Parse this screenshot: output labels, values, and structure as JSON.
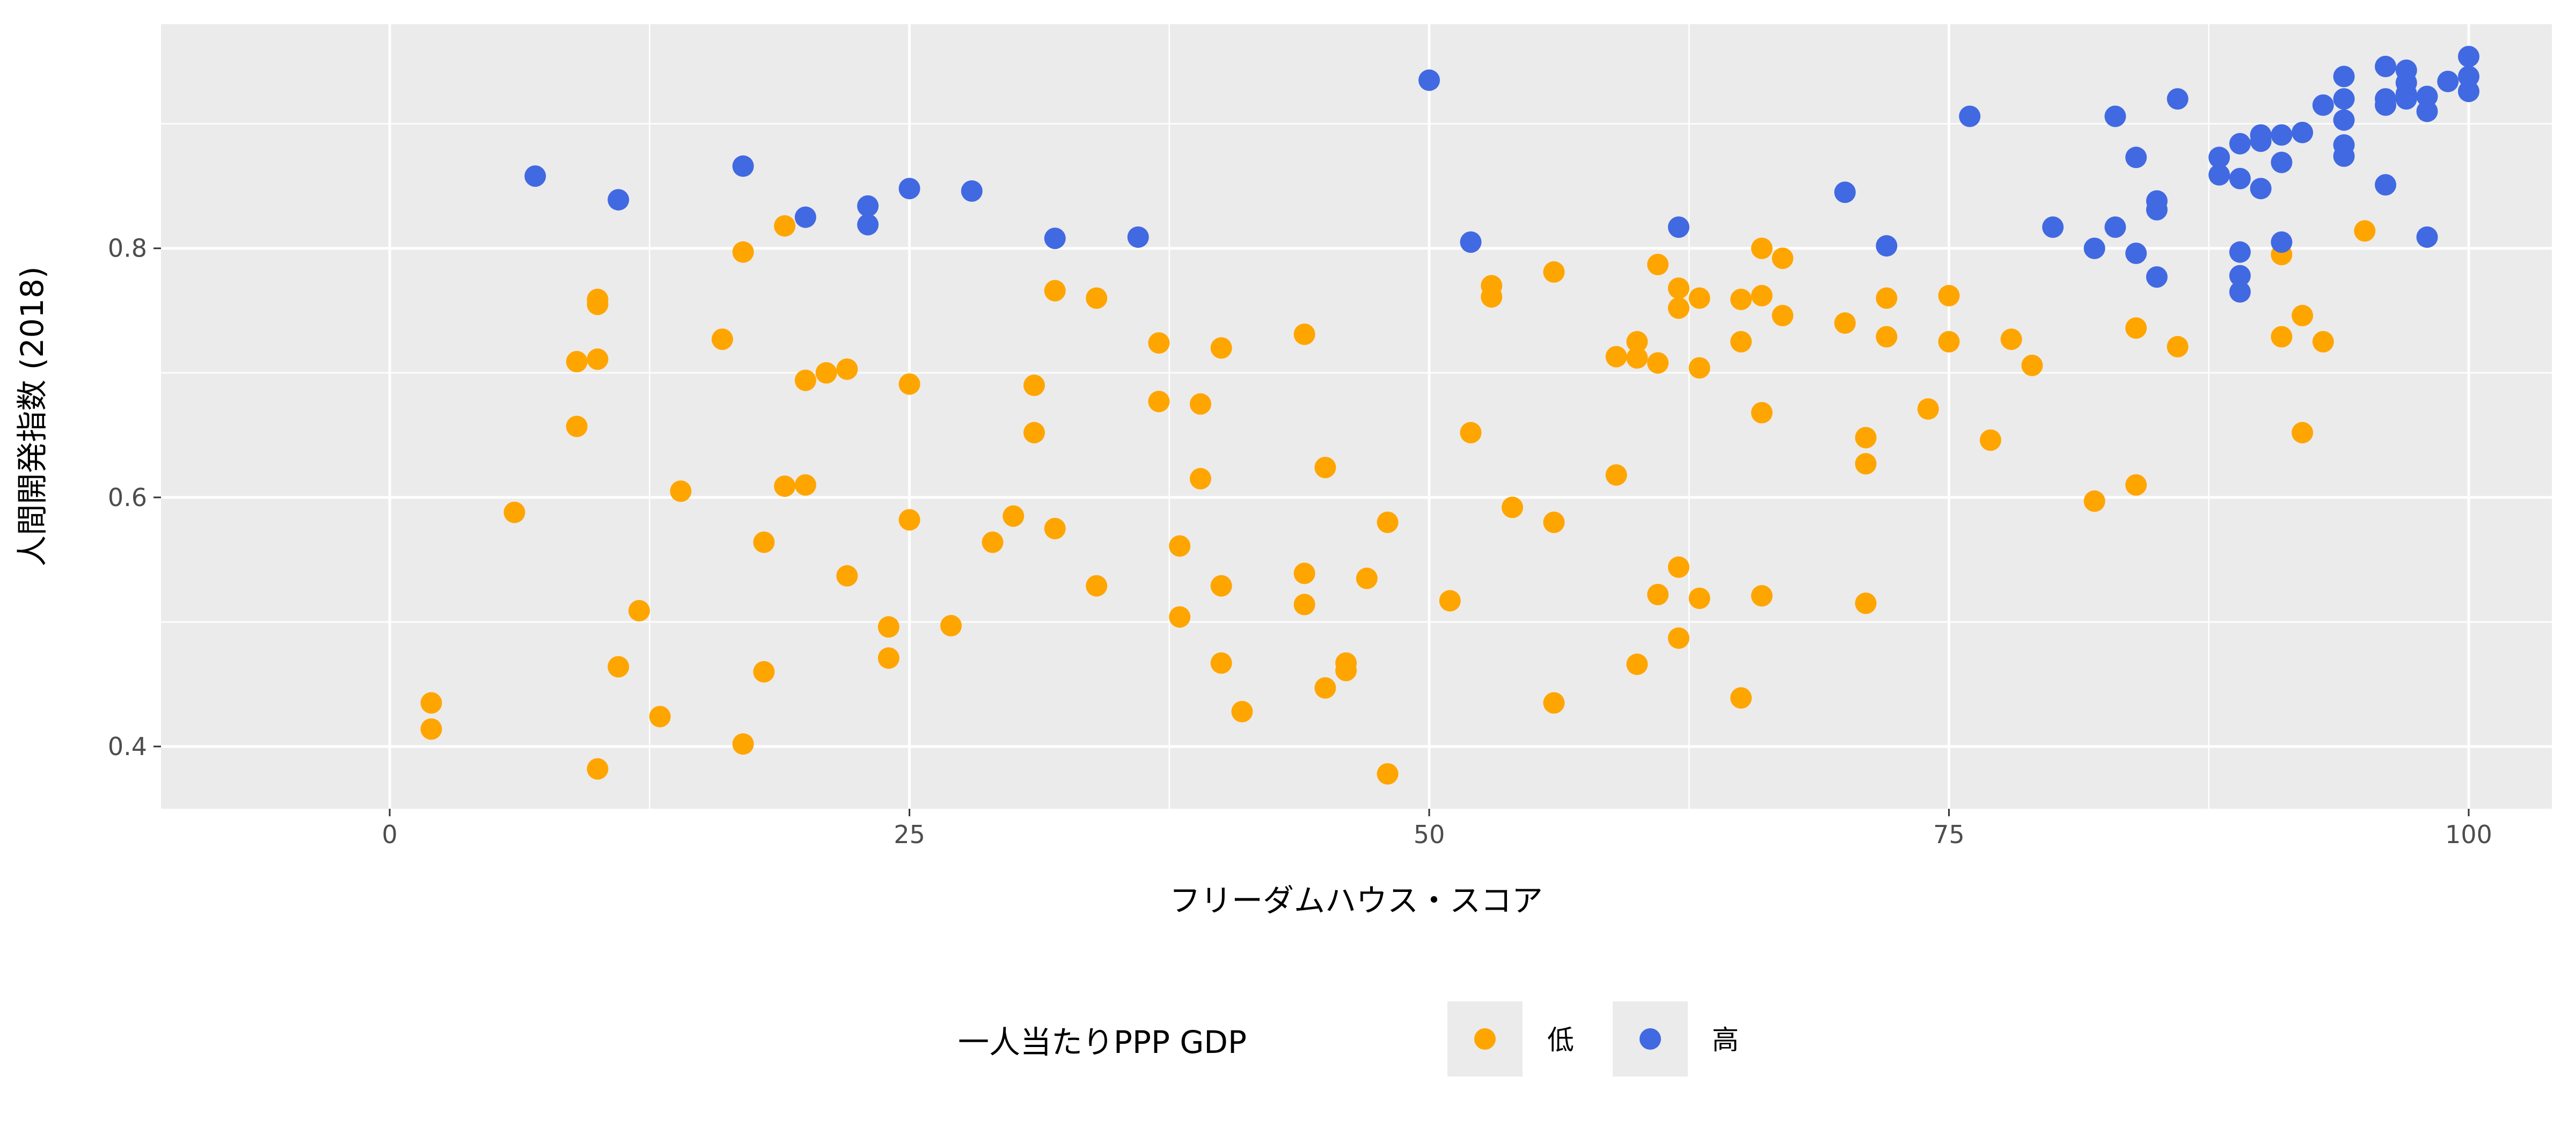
{
  "chart_data": {
    "type": "scatter",
    "xlabel": "フリーダムハウス・スコア",
    "ylabel": "人間開発指数 (2018)",
    "xlim": [
      -11,
      104
    ],
    "ylim": [
      0.35,
      0.98
    ],
    "x_ticks": [
      0,
      25,
      50,
      75,
      100
    ],
    "x_tick_labels": [
      "0",
      "25",
      "50",
      "75",
      "100"
    ],
    "y_ticks": [
      0.4,
      0.6,
      0.8
    ],
    "y_tick_labels": [
      "0.4",
      "0.6",
      "0.8"
    ],
    "grid": true,
    "legend": {
      "title": "一人当たりPPP GDP",
      "position": "bottom",
      "entries": [
        {
          "label": "低",
          "color": "#FFA500"
        },
        {
          "label": "高",
          "color": "#4169E1"
        }
      ]
    },
    "series": [
      {
        "name": "低",
        "color": "#FFA500",
        "points": [
          [
            2,
            0.435
          ],
          [
            2,
            0.414
          ],
          [
            6,
            0.588
          ],
          [
            9,
            0.709
          ],
          [
            9,
            0.657
          ],
          [
            10,
            0.759
          ],
          [
            10,
            0.755
          ],
          [
            10,
            0.711
          ],
          [
            10,
            0.382
          ],
          [
            11,
            0.464
          ],
          [
            12,
            0.509
          ],
          [
            13,
            0.424
          ],
          [
            14,
            0.605
          ],
          [
            16,
            0.727
          ],
          [
            17,
            0.797
          ],
          [
            17,
            0.402
          ],
          [
            18,
            0.564
          ],
          [
            18,
            0.46
          ],
          [
            19,
            0.818
          ],
          [
            19,
            0.609
          ],
          [
            20,
            0.61
          ],
          [
            20,
            0.694
          ],
          [
            21,
            0.7
          ],
          [
            22,
            0.703
          ],
          [
            22,
            0.537
          ],
          [
            24,
            0.496
          ],
          [
            24,
            0.471
          ],
          [
            25,
            0.691
          ],
          [
            25,
            0.582
          ],
          [
            27,
            0.497
          ],
          [
            29,
            0.564
          ],
          [
            30,
            0.585
          ],
          [
            31,
            0.69
          ],
          [
            31,
            0.652
          ],
          [
            32,
            0.766
          ],
          [
            32,
            0.575
          ],
          [
            34,
            0.76
          ],
          [
            34,
            0.529
          ],
          [
            37,
            0.724
          ],
          [
            37,
            0.677
          ],
          [
            38,
            0.561
          ],
          [
            38,
            0.504
          ],
          [
            39,
            0.675
          ],
          [
            39,
            0.615
          ],
          [
            40,
            0.72
          ],
          [
            40,
            0.529
          ],
          [
            40,
            0.467
          ],
          [
            41,
            0.428
          ],
          [
            44,
            0.731
          ],
          [
            44,
            0.539
          ],
          [
            44,
            0.514
          ],
          [
            45,
            0.624
          ],
          [
            45,
            0.447
          ],
          [
            46,
            0.467
          ],
          [
            46,
            0.461
          ],
          [
            47,
            0.535
          ],
          [
            48,
            0.58
          ],
          [
            48,
            0.378
          ],
          [
            51,
            0.517
          ],
          [
            52,
            0.652
          ],
          [
            53,
            0.77
          ],
          [
            53,
            0.761
          ],
          [
            54,
            0.592
          ],
          [
            56,
            0.781
          ],
          [
            56,
            0.58
          ],
          [
            56,
            0.435
          ],
          [
            59,
            0.713
          ],
          [
            59,
            0.618
          ],
          [
            60,
            0.725
          ],
          [
            60,
            0.712
          ],
          [
            60,
            0.466
          ],
          [
            61,
            0.787
          ],
          [
            61,
            0.708
          ],
          [
            61,
            0.522
          ],
          [
            62,
            0.768
          ],
          [
            62,
            0.752
          ],
          [
            62,
            0.544
          ],
          [
            62,
            0.487
          ],
          [
            63,
            0.76
          ],
          [
            63,
            0.704
          ],
          [
            63,
            0.519
          ],
          [
            65,
            0.759
          ],
          [
            65,
            0.725
          ],
          [
            65,
            0.439
          ],
          [
            66,
            0.8
          ],
          [
            66,
            0.762
          ],
          [
            66,
            0.668
          ],
          [
            66,
            0.521
          ],
          [
            67,
            0.792
          ],
          [
            67,
            0.746
          ],
          [
            70,
            0.74
          ],
          [
            71,
            0.648
          ],
          [
            71,
            0.627
          ],
          [
            71,
            0.515
          ],
          [
            72,
            0.76
          ],
          [
            72,
            0.729
          ],
          [
            74,
            0.671
          ],
          [
            75,
            0.762
          ],
          [
            75,
            0.725
          ],
          [
            77,
            0.646
          ],
          [
            78,
            0.727
          ],
          [
            79,
            0.706
          ],
          [
            82,
            0.597
          ],
          [
            84,
            0.736
          ],
          [
            84,
            0.61
          ],
          [
            86,
            0.721
          ],
          [
            91,
            0.795
          ],
          [
            91,
            0.729
          ],
          [
            92,
            0.746
          ],
          [
            92,
            0.652
          ],
          [
            93,
            0.725
          ],
          [
            95,
            0.814
          ]
        ]
      },
      {
        "name": "高",
        "color": "#4169E1",
        "points": [
          [
            7,
            0.858
          ],
          [
            11,
            0.839
          ],
          [
            17,
            0.866
          ],
          [
            20,
            0.825
          ],
          [
            23,
            0.834
          ],
          [
            23,
            0.819
          ],
          [
            25,
            0.848
          ],
          [
            28,
            0.846
          ],
          [
            32,
            0.808
          ],
          [
            36,
            0.809
          ],
          [
            50,
            0.935
          ],
          [
            52,
            0.805
          ],
          [
            62,
            0.817
          ],
          [
            70,
            0.845
          ],
          [
            72,
            0.802
          ],
          [
            76,
            0.906
          ],
          [
            80,
            0.817
          ],
          [
            82,
            0.8
          ],
          [
            83,
            0.906
          ],
          [
            83,
            0.817
          ],
          [
            84,
            0.873
          ],
          [
            84,
            0.796
          ],
          [
            85,
            0.838
          ],
          [
            85,
            0.831
          ],
          [
            85,
            0.777
          ],
          [
            86,
            0.92
          ],
          [
            88,
            0.873
          ],
          [
            88,
            0.859
          ],
          [
            89,
            0.884
          ],
          [
            89,
            0.856
          ],
          [
            89,
            0.797
          ],
          [
            89,
            0.778
          ],
          [
            89,
            0.765
          ],
          [
            90,
            0.891
          ],
          [
            90,
            0.886
          ],
          [
            90,
            0.848
          ],
          [
            91,
            0.891
          ],
          [
            91,
            0.869
          ],
          [
            91,
            0.805
          ],
          [
            92,
            0.893
          ],
          [
            93,
            0.915
          ],
          [
            94,
            0.938
          ],
          [
            94,
            0.92
          ],
          [
            94,
            0.903
          ],
          [
            94,
            0.883
          ],
          [
            94,
            0.874
          ],
          [
            96,
            0.946
          ],
          [
            96,
            0.92
          ],
          [
            96,
            0.915
          ],
          [
            96,
            0.851
          ],
          [
            97,
            0.943
          ],
          [
            97,
            0.933
          ],
          [
            97,
            0.924
          ],
          [
            97,
            0.92
          ],
          [
            98,
            0.922
          ],
          [
            98,
            0.91
          ],
          [
            98,
            0.809
          ],
          [
            99,
            0.934
          ],
          [
            100,
            0.954
          ],
          [
            100,
            0.938
          ],
          [
            100,
            0.926
          ]
        ]
      }
    ]
  }
}
